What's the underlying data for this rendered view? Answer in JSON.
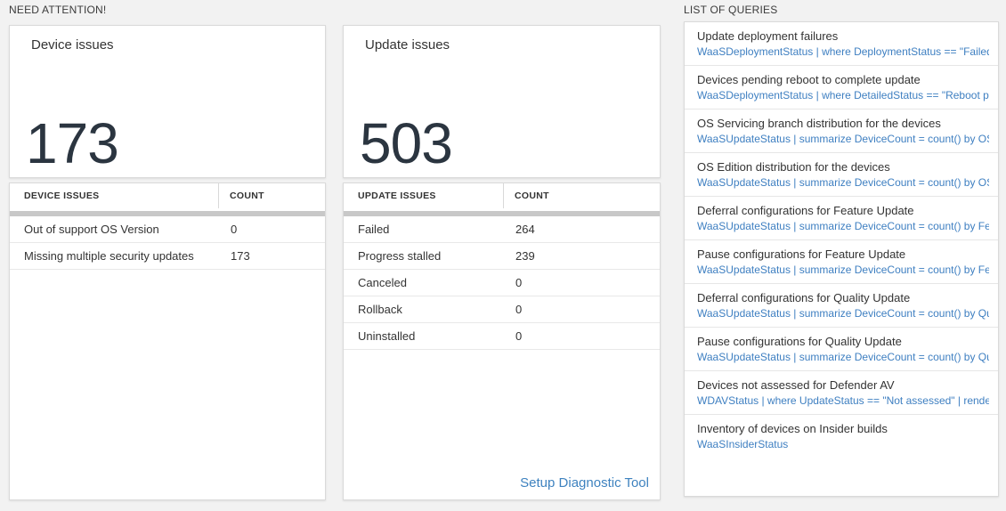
{
  "sections": {
    "need_attention_label": "NEED ATTENTION!",
    "queries_label": "LIST OF QUERIES"
  },
  "device_card": {
    "title": "Device issues",
    "count": "173",
    "table": {
      "headers": [
        "DEVICE ISSUES",
        "COUNT"
      ],
      "rows": [
        {
          "label": "Out of support OS Version",
          "value": "0"
        },
        {
          "label": "Missing multiple security updates",
          "value": "173"
        }
      ]
    }
  },
  "update_card": {
    "title": "Update issues",
    "count": "503",
    "table": {
      "headers": [
        "UPDATE ISSUES",
        "COUNT"
      ],
      "rows": [
        {
          "label": "Failed",
          "value": "264"
        },
        {
          "label": "Progress stalled",
          "value": "239"
        },
        {
          "label": "Canceled",
          "value": "0"
        },
        {
          "label": "Rollback",
          "value": "0"
        },
        {
          "label": "Uninstalled",
          "value": "0"
        }
      ]
    },
    "link_label": "Setup Diagnostic Tool"
  },
  "query_list": {
    "items": [
      {
        "title": "Update deployment failures",
        "query": "WaaSDeploymentStatus | where DeploymentStatus == \"Failed\" |..."
      },
      {
        "title": "Devices pending reboot to complete update",
        "query": "WaaSDeploymentStatus | where DetailedStatus == \"Reboot pend..."
      },
      {
        "title": "OS Servicing branch distribution for the devices",
        "query": "WaaSUpdateStatus | summarize DeviceCount = count() by OSSer..."
      },
      {
        "title": "OS Edition distribution for the devices",
        "query": "WaaSUpdateStatus | summarize DeviceCount = count() by OSEdit..."
      },
      {
        "title": "Deferral configurations for Feature Update",
        "query": "WaaSUpdateStatus | summarize DeviceCount = count() by Featur..."
      },
      {
        "title": "Pause configurations for Feature Update",
        "query": "WaaSUpdateStatus | summarize DeviceCount = count() by Featur..."
      },
      {
        "title": "Deferral configurations for Quality Update",
        "query": "WaaSUpdateStatus | summarize DeviceCount = count() by Qualit..."
      },
      {
        "title": "Pause configurations for Quality Update",
        "query": "WaaSUpdateStatus | summarize DeviceCount = count() by Qualit..."
      },
      {
        "title": "Devices not assessed for Defender AV",
        "query": "WDAVStatus | where UpdateStatus == \"Not assessed\" | render ta..."
      },
      {
        "title": "Inventory of devices on Insider builds",
        "query": "WaaSInsiderStatus"
      }
    ]
  },
  "colors": {
    "page_background": "#f2f2f2",
    "accent_blue": "#3e7fc1",
    "big_number": "#2b3540",
    "header_band_gray": "#c8c8c8"
  }
}
